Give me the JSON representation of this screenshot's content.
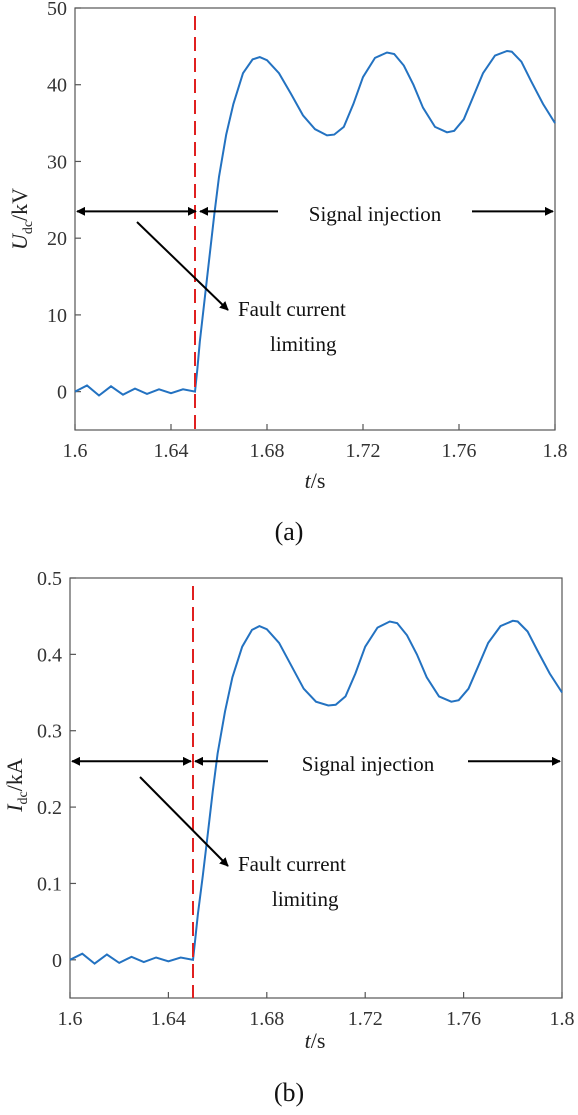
{
  "chart_data": [
    {
      "type": "line",
      "panel_label": "(a)",
      "ylabel_main": "U",
      "ylabel_sub": "dc",
      "ylabel_unit": "/kV",
      "xlabel_main": "t",
      "xlabel_unit": "/s",
      "xlim": [
        1.6,
        1.8
      ],
      "ylim": [
        -5,
        50
      ],
      "xticks": [
        "1.6",
        "1.64",
        "1.68",
        "1.72",
        "1.76",
        "1.8"
      ],
      "xtick_values": [
        1.6,
        1.64,
        1.68,
        1.72,
        1.76,
        1.8
      ],
      "yticks": [
        "0",
        "10",
        "20",
        "30",
        "40",
        "50"
      ],
      "ytick_values": [
        0,
        10,
        20,
        30,
        40,
        50
      ],
      "fault_time": 1.65,
      "arrow_level": 23.5,
      "annotation_signal": "Signal injection",
      "annotation_fault_line1": "Fault current",
      "annotation_fault_line2": "limiting",
      "colors": {
        "series": "#2372c1",
        "fault_line": "#e02020",
        "arrows": "#000000"
      },
      "series": [
        {
          "x": [
            1.6,
            1.605,
            1.61,
            1.615,
            1.62,
            1.625,
            1.63,
            1.635,
            1.64,
            1.645,
            1.65,
            1.651,
            1.652,
            1.654,
            1.656,
            1.658,
            1.66,
            1.663,
            1.666,
            1.67,
            1.674,
            1.677,
            1.68,
            1.685,
            1.69,
            1.695,
            1.7,
            1.705,
            1.708,
            1.712,
            1.716,
            1.72,
            1.725,
            1.73,
            1.733,
            1.737,
            1.741,
            1.745,
            1.75,
            1.755,
            1.758,
            1.762,
            1.766,
            1.77,
            1.775,
            1.78,
            1.782,
            1.786,
            1.79,
            1.795,
            1.8
          ],
          "y": [
            0,
            0.8,
            -0.5,
            0.7,
            -0.4,
            0.4,
            -0.3,
            0.3,
            -0.2,
            0.3,
            0,
            3,
            6.5,
            12,
            17.5,
            23,
            28,
            33.5,
            37.5,
            41.5,
            43.3,
            43.6,
            43.2,
            41.5,
            38.8,
            36,
            34.2,
            33.4,
            33.5,
            34.5,
            37.5,
            41,
            43.5,
            44.2,
            44,
            42.5,
            40,
            37,
            34.5,
            33.8,
            34,
            35.5,
            38.5,
            41.5,
            43.8,
            44.4,
            44.3,
            43,
            40.5,
            37.5,
            35
          ]
        }
      ]
    },
    {
      "type": "line",
      "panel_label": "(b)",
      "ylabel_main": "I",
      "ylabel_sub": "dc",
      "ylabel_unit": "/kA",
      "xlabel_main": "t",
      "xlabel_unit": "/s",
      "xlim": [
        1.6,
        1.8
      ],
      "ylim": [
        -0.05,
        0.5
      ],
      "xticks": [
        "1.6",
        "1.64",
        "1.68",
        "1.72",
        "1.76",
        "1.8"
      ],
      "xtick_values": [
        1.6,
        1.64,
        1.68,
        1.72,
        1.76,
        1.8
      ],
      "yticks": [
        "0",
        "0.1",
        "0.2",
        "0.3",
        "0.4",
        "0.5"
      ],
      "ytick_values": [
        0,
        0.1,
        0.2,
        0.3,
        0.4,
        0.5
      ],
      "fault_time": 1.65,
      "arrow_level": 0.26,
      "annotation_signal": "Signal injection",
      "annotation_fault_line1": "Fault current",
      "annotation_fault_line2": "limiting",
      "colors": {
        "series": "#2372c1",
        "fault_line": "#e02020",
        "arrows": "#000000"
      },
      "series": [
        {
          "x": [
            1.6,
            1.605,
            1.61,
            1.615,
            1.62,
            1.625,
            1.63,
            1.635,
            1.64,
            1.645,
            1.65,
            1.651,
            1.652,
            1.654,
            1.656,
            1.658,
            1.66,
            1.663,
            1.666,
            1.67,
            1.674,
            1.677,
            1.68,
            1.685,
            1.69,
            1.695,
            1.7,
            1.705,
            1.708,
            1.712,
            1.716,
            1.72,
            1.725,
            1.73,
            1.733,
            1.737,
            1.741,
            1.745,
            1.75,
            1.755,
            1.758,
            1.762,
            1.766,
            1.77,
            1.775,
            1.78,
            1.782,
            1.786,
            1.79,
            1.795,
            1.8
          ],
          "y": [
            0,
            0.008,
            -0.005,
            0.007,
            -0.004,
            0.004,
            -0.003,
            0.003,
            -0.002,
            0.003,
            0,
            0.03,
            0.06,
            0.11,
            0.165,
            0.22,
            0.27,
            0.325,
            0.37,
            0.41,
            0.432,
            0.437,
            0.433,
            0.415,
            0.385,
            0.355,
            0.338,
            0.333,
            0.334,
            0.345,
            0.375,
            0.41,
            0.435,
            0.443,
            0.441,
            0.425,
            0.4,
            0.37,
            0.345,
            0.338,
            0.34,
            0.355,
            0.385,
            0.415,
            0.437,
            0.444,
            0.443,
            0.43,
            0.405,
            0.375,
            0.35
          ]
        }
      ]
    }
  ]
}
